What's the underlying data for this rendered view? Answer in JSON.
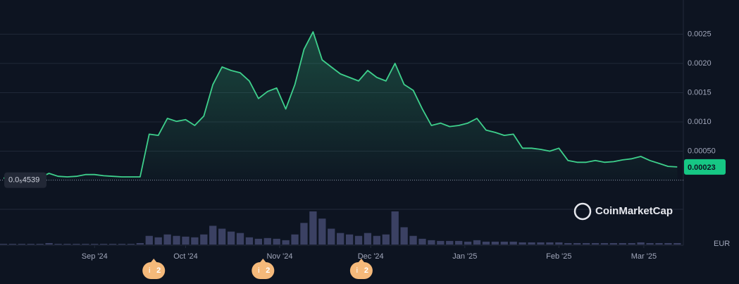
{
  "chart_data": {
    "type": "line",
    "color": "#3ed08c",
    "values": [
      4e-05,
      4e-05,
      3e-05,
      4e-05,
      5e-05,
      0.00012,
      7e-05,
      6e-05,
      7e-05,
      0.0001,
      0.0001,
      8e-05,
      7e-05,
      6e-05,
      6e-05,
      6e-05,
      0.00079,
      0.00077,
      0.00106,
      0.00101,
      0.00104,
      0.00094,
      0.0011,
      0.00164,
      0.00194,
      0.00188,
      0.00184,
      0.0017,
      0.0014,
      0.00152,
      0.00158,
      0.00122,
      0.00164,
      0.00224,
      0.00254,
      0.00206,
      0.00194,
      0.00182,
      0.00176,
      0.0017,
      0.00188,
      0.00176,
      0.0017,
      0.002,
      0.00164,
      0.00154,
      0.00122,
      0.00094,
      0.00098,
      0.00092,
      0.00094,
      0.00098,
      0.00106,
      0.00086,
      0.00082,
      0.00077,
      0.00079,
      0.00055,
      0.00055,
      0.00053,
      0.0005,
      0.00055,
      0.00034,
      0.00031,
      0.00031,
      0.00034,
      0.00031,
      0.00032,
      0.00035,
      0.00037,
      0.00041,
      0.00034,
      0.00029,
      0.00024,
      0.00023
    ],
    "volume": {
      "color": "#3b4163",
      "values": [
        1,
        1,
        1,
        1,
        1,
        2,
        1,
        1,
        1,
        1,
        1,
        1,
        1,
        1,
        1,
        2,
        12,
        10,
        14,
        12,
        11,
        10,
        14,
        26,
        22,
        18,
        16,
        10,
        8,
        9,
        8,
        6,
        14,
        30,
        46,
        36,
        22,
        16,
        14,
        12,
        16,
        12,
        14,
        46,
        24,
        12,
        8,
        6,
        5,
        5,
        5,
        4,
        6,
        4,
        4,
        4,
        4,
        3,
        3,
        3,
        3,
        3,
        2,
        2,
        2,
        2,
        2,
        2,
        2,
        2,
        3,
        2,
        2,
        2,
        2
      ]
    },
    "ylim": [
      0,
      0.003
    ],
    "yticks": [
      {
        "value": 0.0005,
        "label": "0.00050"
      },
      {
        "value": 0.001,
        "label": "0.0010"
      },
      {
        "value": 0.0015,
        "label": "0.0015"
      },
      {
        "value": 0.002,
        "label": "0.0020"
      },
      {
        "value": 0.0025,
        "label": "0.0025"
      }
    ],
    "xlim": [
      0,
      74.67
    ],
    "xticks": [
      {
        "value": 10,
        "label": "Sep '24"
      },
      {
        "value": 20,
        "label": "Oct '24"
      },
      {
        "value": 30.33,
        "label": "Nov '24"
      },
      {
        "value": 40.33,
        "label": "Dec '24"
      },
      {
        "value": 50.67,
        "label": "Jan '25"
      },
      {
        "value": 61,
        "label": "Feb '25"
      },
      {
        "value": 70.33,
        "label": "Mar '25"
      }
    ],
    "current_price": 0.00023,
    "reference_price": {
      "value": 4.539e-06,
      "label": "0.0₅4539"
    },
    "currency": "EUR",
    "watermark": "CoinMarketCap",
    "events": [
      {
        "x": 16.5,
        "icon": "i",
        "count": 2
      },
      {
        "x": 28.5,
        "icon": "i",
        "count": 2
      },
      {
        "x": 39.3,
        "icon": "i",
        "count": 2
      }
    ]
  }
}
